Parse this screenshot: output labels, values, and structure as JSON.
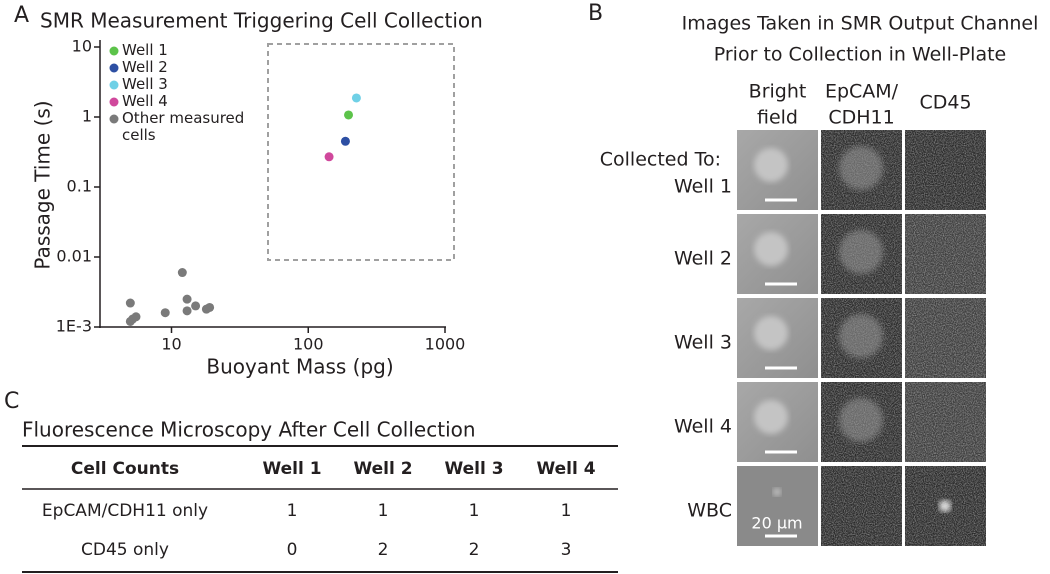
{
  "panel_labels": [
    "A",
    "B",
    "C"
  ],
  "chart_data": {
    "type": "scatter",
    "title": "SMR Measurement Triggering Cell Collection",
    "xlabel": "Buoyant Mass (pg)",
    "ylabel": "Passage Time (s)",
    "xlog": true,
    "ylog": true,
    "xlim": [
      3,
      1000
    ],
    "ylim": [
      0.001,
      10
    ],
    "xticks": [
      10,
      100,
      1000
    ],
    "yticks": [
      {
        "value": 0.001,
        "label": "1E-3"
      },
      0.01,
      0.1,
      1,
      10
    ],
    "series": [
      {
        "name": "Well 1",
        "color": "#5cc34a",
        "x": [
          197
        ],
        "values": [
          1.07
        ]
      },
      {
        "name": "Well 2",
        "color": "#2d4fa3",
        "x": [
          187
        ],
        "values": [
          0.45
        ]
      },
      {
        "name": "Well 3",
        "color": "#6fd0e6",
        "x": [
          225
        ],
        "values": [
          1.87
        ]
      },
      {
        "name": "Well 4",
        "color": "#d0489c",
        "x": [
          142
        ],
        "values": [
          0.27
        ]
      },
      {
        "name": "Other measured cells",
        "color": "#7a7a7a",
        "x": [
          5,
          5.2,
          5.5,
          5,
          9,
          12,
          13,
          13,
          15,
          18,
          19
        ],
        "values": [
          0.0022,
          0.0013,
          0.0014,
          0.0012,
          0.0016,
          0.006,
          0.0025,
          0.0017,
          0.002,
          0.0018,
          0.0019
        ]
      }
    ]
  },
  "images": {
    "title_lines": [
      "Images Taken in SMR Output Channel",
      "Prior to Collection in Well-Plate"
    ],
    "columns": [
      [
        "Bright",
        "field"
      ],
      [
        "EpCAM/",
        "CDH11"
      ],
      [
        "CD45"
      ]
    ],
    "row_prefix": "Collected To:",
    "rows": [
      "Well 1",
      "Well 2",
      "Well 3",
      "Well 4",
      "WBC"
    ],
    "scale_bar": "20 μm"
  },
  "table": {
    "title": "Fluorescence Microscopy After Cell Collection",
    "header": [
      "Cell Counts",
      "Well 1",
      "Well 2",
      "Well 3",
      "Well 4"
    ],
    "rows": [
      [
        "EpCAM/CDH11 only",
        1,
        1,
        1,
        1
      ],
      [
        "CD45 only",
        0,
        2,
        2,
        3
      ]
    ]
  }
}
